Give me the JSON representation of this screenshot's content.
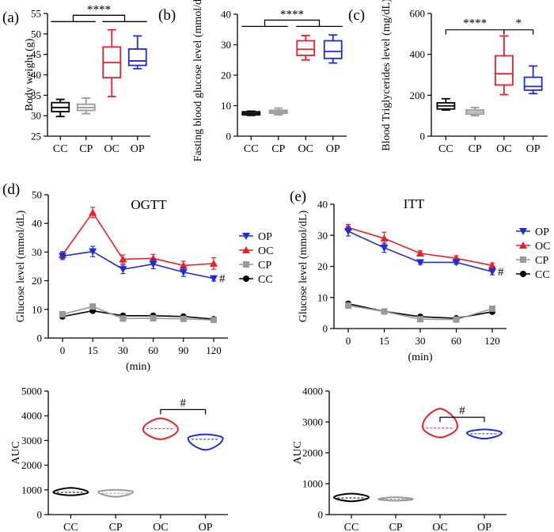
{
  "chart_data": [
    {
      "id": "a",
      "type": "box",
      "panel_label": "(a)",
      "ylabel": "Body weight (g)",
      "ylim": [
        25,
        55
      ],
      "yticks": [
        25,
        30,
        35,
        40,
        45,
        50,
        55
      ],
      "categories": [
        "CC",
        "CP",
        "OC",
        "OP"
      ],
      "colors": [
        "#000000",
        "#999999",
        "#e8202a",
        "#1f2bdb"
      ],
      "boxes": [
        {
          "min": 29.8,
          "q1": 31.0,
          "median": 32.0,
          "q3": 33.2,
          "max": 34.0
        },
        {
          "min": 30.5,
          "q1": 31.3,
          "median": 32.0,
          "q3": 32.8,
          "max": 34.3
        },
        {
          "min": 34.7,
          "q1": 39.3,
          "median": 43.0,
          "q3": 46.8,
          "max": 51.0
        },
        {
          "min": 41.5,
          "q1": 42.3,
          "median": 43.4,
          "q3": 46.3,
          "max": 49.5
        }
      ],
      "significance": [
        {
          "label": "****",
          "type": "group",
          "left": [
            0,
            1
          ],
          "right": [
            2,
            3
          ],
          "y": 53
        }
      ]
    },
    {
      "id": "b",
      "type": "box",
      "panel_label": "(b)",
      "ylabel": "Fasting blood glucose level (mmol/dL)",
      "ylim": [
        0,
        40
      ],
      "yticks": [
        0,
        10,
        20,
        30,
        40
      ],
      "categories": [
        "CC",
        "CP",
        "OC",
        "OP"
      ],
      "colors": [
        "#000000",
        "#999999",
        "#e8202a",
        "#1f2bdb"
      ],
      "boxes": [
        {
          "min": 6.8,
          "q1": 7.0,
          "median": 7.5,
          "q3": 8.0,
          "max": 8.2
        },
        {
          "min": 7.0,
          "q1": 7.5,
          "median": 8.0,
          "q3": 8.5,
          "max": 9.2
        },
        {
          "min": 25.0,
          "q1": 26.5,
          "median": 28.5,
          "q3": 31.3,
          "max": 33.0
        },
        {
          "min": 24.0,
          "q1": 25.5,
          "median": 27.8,
          "q3": 31.3,
          "max": 33.2
        }
      ],
      "significance": [
        {
          "label": "****",
          "type": "group",
          "left": [
            0,
            1
          ],
          "right": [
            2,
            3
          ],
          "y": 36
        }
      ]
    },
    {
      "id": "c",
      "type": "box",
      "panel_label": "(c)",
      "ylabel": "Blood Triglycerides level (mg/dL)",
      "ylim": [
        0,
        600
      ],
      "yticks": [
        0,
        200,
        400,
        600
      ],
      "categories": [
        "CC",
        "CP",
        "OC",
        "OP"
      ],
      "colors": [
        "#000000",
        "#999999",
        "#e8202a",
        "#1f2bdb"
      ],
      "boxes": [
        {
          "min": 128,
          "q1": 133,
          "median": 148,
          "q3": 163,
          "max": 183
        },
        {
          "min": 100,
          "q1": 108,
          "median": 118,
          "q3": 128,
          "max": 140
        },
        {
          "min": 203,
          "q1": 250,
          "median": 305,
          "q3": 393,
          "max": 490
        },
        {
          "min": 208,
          "q1": 225,
          "median": 243,
          "q3": 288,
          "max": 343
        }
      ],
      "significance": [
        {
          "label": "****",
          "type": "pair",
          "from": 0,
          "to": 2,
          "y": 520
        },
        {
          "label": "*",
          "type": "pair",
          "from": 2,
          "to": 3,
          "y": 520
        }
      ]
    },
    {
      "id": "d",
      "type": "line",
      "panel_label": "(d)",
      "title": "OGTT",
      "xlabel": "(min)",
      "ylabel": "Glucose level (mmol/dL)",
      "x": [
        0,
        15,
        30,
        60,
        90,
        120
      ],
      "ylim": [
        0,
        50
      ],
      "yticks": [
        0,
        10,
        20,
        30,
        40,
        50
      ],
      "series": [
        {
          "name": "OP",
          "color": "#1f2bdb",
          "marker": "triangle-down",
          "values": [
            28.6,
            30.2,
            24.0,
            25.8,
            23.0,
            20.8
          ],
          "errors": [
            1.2,
            1.8,
            1.5,
            1.6,
            1.5,
            0.9
          ]
        },
        {
          "name": "OC",
          "color": "#e8202a",
          "marker": "triangle-up",
          "values": [
            29.0,
            43.8,
            27.5,
            27.8,
            25.3,
            26.0
          ],
          "errors": [
            1.2,
            1.8,
            1.5,
            1.4,
            1.5,
            2.0
          ]
        },
        {
          "name": "CP",
          "color": "#999999",
          "marker": "square",
          "values": [
            8.3,
            11.0,
            6.8,
            6.9,
            6.7,
            6.3
          ],
          "errors": [
            0.5,
            0.8,
            0.5,
            0.4,
            0.4,
            0.4
          ]
        },
        {
          "name": "CC",
          "color": "#000000",
          "marker": "circle",
          "values": [
            7.5,
            9.5,
            7.8,
            7.8,
            7.5,
            6.6
          ],
          "errors": [
            0.4,
            0.5,
            0.4,
            0.4,
            0.4,
            0.4
          ]
        }
      ],
      "end_annotation": "#"
    },
    {
      "id": "e",
      "type": "line",
      "panel_label": "(e)",
      "title": "ITT",
      "xlabel": "(min)",
      "ylabel": "Glucose level (mmol/dL)",
      "x": [
        0,
        15,
        30,
        60,
        120
      ],
      "ylim": [
        0,
        40
      ],
      "yticks": [
        0,
        10,
        20,
        30,
        40
      ],
      "series": [
        {
          "name": "OP",
          "color": "#1f2bdb",
          "marker": "triangle-down",
          "values": [
            31.3,
            26.0,
            21.3,
            21.3,
            18.3
          ],
          "errors": [
            1.5,
            1.5,
            0.6,
            0.6,
            1.0
          ]
        },
        {
          "name": "OC",
          "color": "#e8202a",
          "marker": "triangle-up",
          "values": [
            32.5,
            29.0,
            24.2,
            22.6,
            20.3
          ],
          "errors": [
            1.0,
            2.0,
            0.8,
            0.8,
            0.8
          ]
        },
        {
          "name": "CP",
          "color": "#999999",
          "marker": "square",
          "values": [
            7.4,
            5.5,
            3.0,
            2.9,
            6.4
          ],
          "errors": [
            0.4,
            0.4,
            0.3,
            0.3,
            0.4
          ]
        },
        {
          "name": "CC",
          "color": "#000000",
          "marker": "circle",
          "values": [
            8.0,
            5.5,
            3.8,
            3.3,
            5.4
          ],
          "errors": [
            0.4,
            0.4,
            0.3,
            0.3,
            0.4
          ]
        }
      ],
      "end_annotation": "#"
    },
    {
      "id": "d-auc",
      "type": "violin",
      "ylabel": "AUC",
      "ylim": [
        0,
        5000
      ],
      "yticks": [
        0,
        1000,
        2000,
        3000,
        4000,
        5000
      ],
      "categories": [
        "CC",
        "CP",
        "OC",
        "OP"
      ],
      "colors": [
        "#000000",
        "#999999",
        "#e8202a",
        "#1f2bdb"
      ],
      "violins": [
        {
          "min": 780,
          "max": 1080,
          "median": 900,
          "widest": 900
        },
        {
          "min": 720,
          "max": 1000,
          "median": 860,
          "widest": 930
        },
        {
          "min": 3050,
          "max": 3900,
          "median": 3480,
          "widest": 3450
        },
        {
          "min": 2620,
          "max": 3250,
          "median": 3050,
          "widest": 3100
        }
      ],
      "significance": [
        {
          "label": "#",
          "from": 2,
          "to": 3,
          "y": 4250
        }
      ]
    },
    {
      "id": "e-auc",
      "type": "violin",
      "ylabel": "AUC",
      "ylim": [
        0,
        4000
      ],
      "yticks": [
        0,
        1000,
        2000,
        3000,
        4000
      ],
      "categories": [
        "CC",
        "CP",
        "OC",
        "OP"
      ],
      "colors": [
        "#000000",
        "#999999",
        "#e8202a",
        "#1f2bdb"
      ],
      "violins": [
        {
          "min": 430,
          "max": 680,
          "median": 540,
          "widest": 560
        },
        {
          "min": 450,
          "max": 560,
          "median": 500,
          "widest": 500
        },
        {
          "min": 2500,
          "max": 3430,
          "median": 2800,
          "widest": 2850
        },
        {
          "min": 2460,
          "max": 2760,
          "median": 2620,
          "widest": 2650
        }
      ],
      "significance": [
        {
          "label": "#",
          "from": 2,
          "to": 3,
          "y": 3150
        }
      ]
    }
  ]
}
